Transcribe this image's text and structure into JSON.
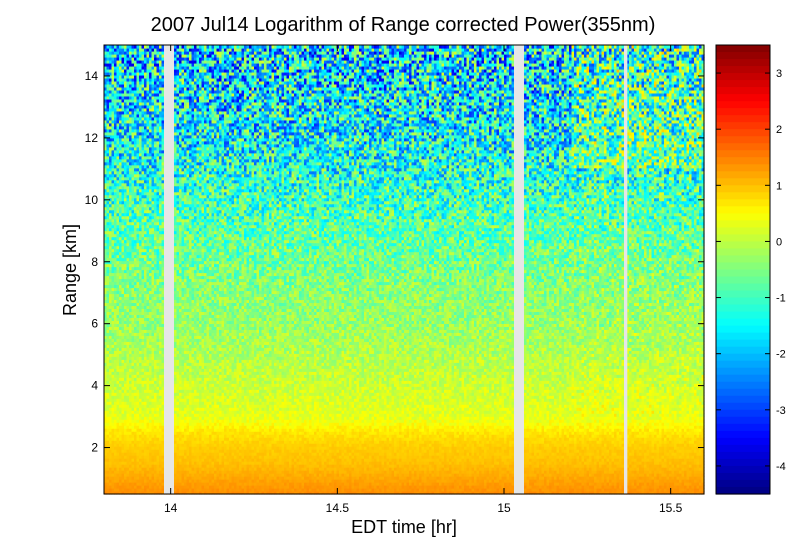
{
  "chart_data": {
    "type": "heatmap",
    "title": "2007 Jul14  Logarithm of Range corrected Power(355nm)",
    "xlabel": "EDT time [hr]",
    "ylabel": "Range [km]",
    "xlim": [
      13.8,
      15.6
    ],
    "ylim": [
      0.5,
      15
    ],
    "x_ticks": [
      "14",
      "14.5",
      "15",
      "15.5"
    ],
    "x_tick_values": [
      14,
      14.5,
      15,
      15.5
    ],
    "y_ticks": [
      "2",
      "4",
      "6",
      "8",
      "10",
      "12",
      "14"
    ],
    "y_tick_values": [
      2,
      4,
      6,
      8,
      10,
      12,
      14
    ],
    "colorbar": {
      "colormap": "jet",
      "range": [
        -4.5,
        3.5
      ],
      "ticks": [
        "3",
        "2",
        "1",
        "0",
        "-1",
        "-2",
        "-3",
        "-4"
      ],
      "tick_values": [
        3,
        2,
        1,
        0,
        -1,
        -2,
        -3,
        -4
      ]
    },
    "data_gaps_hr": [
      [
        13.98,
        14.01
      ],
      [
        15.03,
        15.06
      ],
      [
        15.36,
        15.37
      ]
    ],
    "profile": {
      "range_km": [
        0.5,
        1.0,
        1.5,
        2.0,
        2.5,
        3.0,
        4.0,
        5.0,
        6.0,
        7.0,
        8.0,
        9.0,
        10.0,
        11.0,
        12.0,
        13.0,
        14.0,
        15.0
      ],
      "typical_value": [
        1.4,
        1.2,
        1.0,
        0.9,
        0.7,
        0.3,
        0.1,
        -0.1,
        -0.3,
        -0.4,
        -0.6,
        -0.8,
        -1.0,
        -1.3,
        -1.5,
        -1.6,
        -1.7,
        -1.8
      ],
      "noise_level": [
        0.05,
        0.05,
        0.05,
        0.05,
        0.08,
        0.15,
        0.2,
        0.25,
        0.3,
        0.35,
        0.45,
        0.55,
        0.7,
        0.85,
        1.0,
        1.1,
        1.2,
        1.3
      ]
    }
  }
}
